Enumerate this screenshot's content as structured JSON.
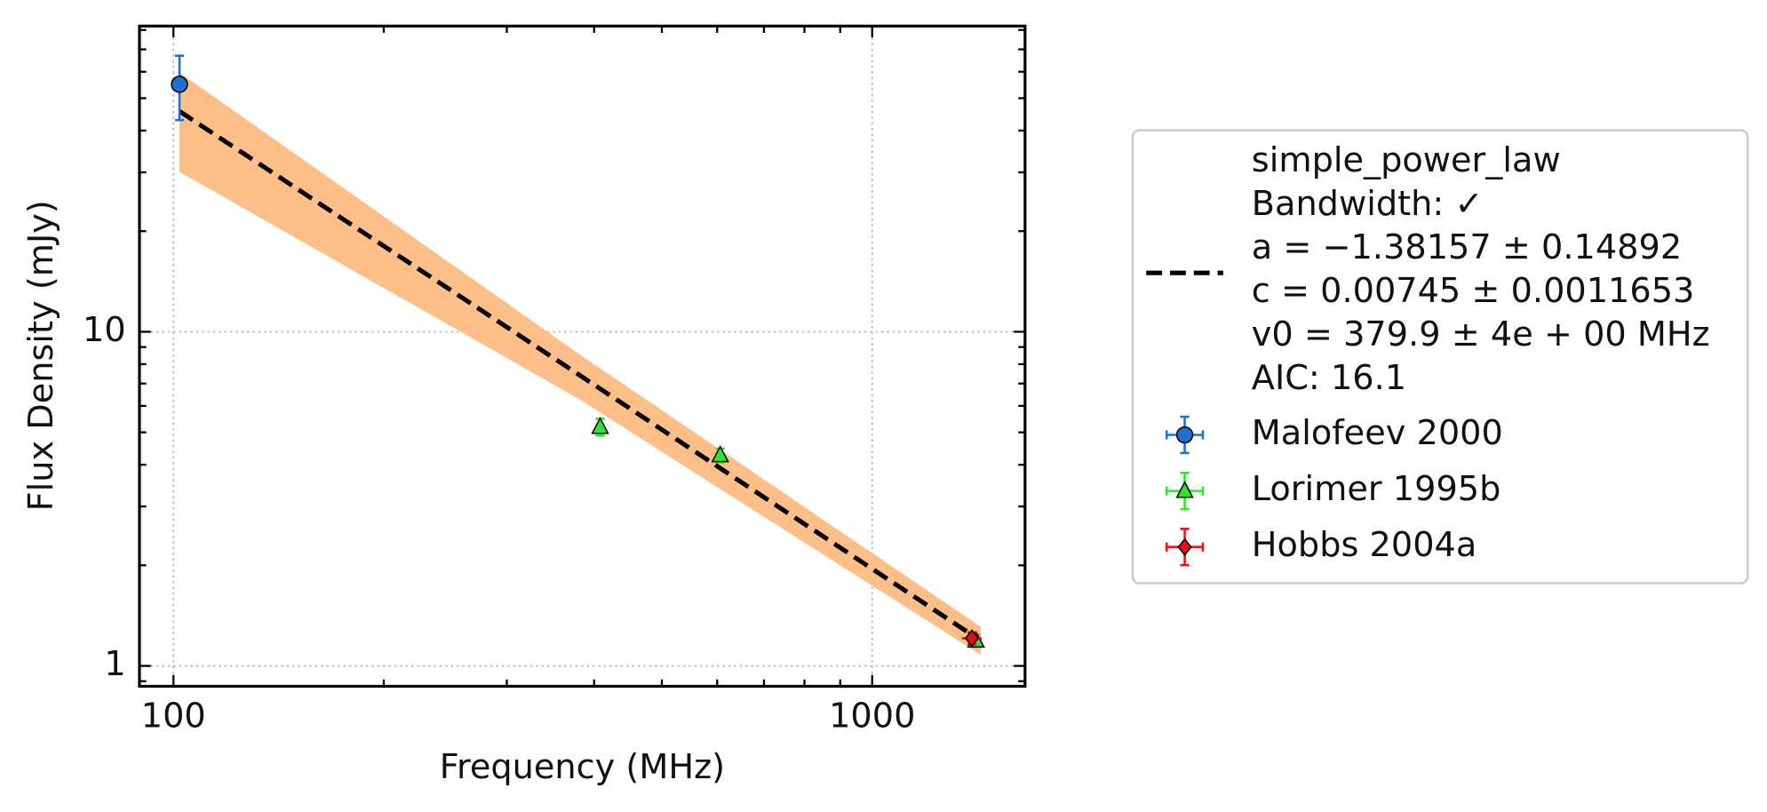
{
  "chart_data": {
    "type": "errorbar_loglog",
    "xlabel": "Frequency (MHz)",
    "ylabel": "Flux Density (mJy)",
    "xscale": "log",
    "yscale": "log",
    "xlim": [
      89.4,
      1655
    ],
    "ylim": [
      0.869,
      82.2
    ],
    "xticks": [
      100,
      1000
    ],
    "yticks": [
      1,
      10
    ],
    "xminor": [
      200,
      300,
      400,
      500,
      600,
      700,
      800,
      900
    ],
    "yminor": [
      0.9,
      2,
      3,
      4,
      5,
      6,
      7,
      8,
      9,
      20,
      30,
      40,
      50,
      60,
      70,
      80
    ],
    "grid": true,
    "legend_position": "outside right",
    "fit": {
      "label_lines": [
        "simple_power_law",
        "Bandwidth: ✓",
        "a = −1.38157 ± 0.14892",
        "c = 0.00745 ± 0.0011653",
        "v0 = 379.9 ± 4e + 00 MHz",
        "AIC: 16.1"
      ],
      "color": "#000000",
      "band_color": "#fdbf87",
      "x": [
        102,
        380,
        1430
      ],
      "values": [
        45.7,
        7.45,
        1.19
      ],
      "lower": [
        30.1,
        6.3,
        1.08
      ],
      "upper": [
        59.7,
        8.6,
        1.31
      ]
    },
    "series": [
      {
        "name": "Malofeev 2000",
        "marker": "circle",
        "color": "#1f6fd0",
        "ecolor": "#1a72d8",
        "x": [
          102
        ],
        "values": [
          55
        ],
        "errors": [
          12
        ],
        "x_errors": [
          0
        ]
      },
      {
        "name": "Lorimer 1995b",
        "marker": "triangle",
        "color": "#33e033",
        "ecolor": "#22ee22",
        "x": [
          408,
          606,
          1408
        ],
        "values": [
          5.19,
          4.27,
          1.19
        ],
        "errors": [
          0.3,
          0.2,
          0.05
        ],
        "x_errors": [
          0,
          0,
          0
        ]
      },
      {
        "name": "Hobbs 2004a",
        "marker": "diamond",
        "color": "#e01010",
        "ecolor": "#ee1111",
        "x": [
          1389
        ],
        "values": [
          1.21
        ],
        "errors": [
          0.05
        ],
        "x_errors": [
          45
        ]
      }
    ]
  }
}
